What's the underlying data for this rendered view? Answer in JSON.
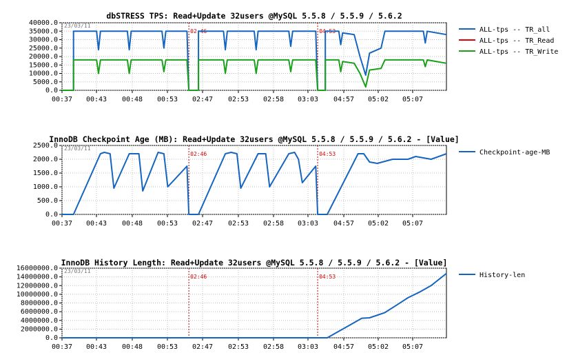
{
  "chart_data": [
    {
      "type": "line",
      "title": "dbSTRESS TPS: Read+Update 32users @MySQL 5.5.8 / 5.5.9 / 5.6.2",
      "date_stamp": "23/03/11",
      "ylim": [
        0,
        40000
      ],
      "yticks": [
        0,
        5000,
        10000,
        15000,
        20000,
        25000,
        30000,
        35000,
        40000
      ],
      "ytick_labels": [
        "0.0",
        "5000.0",
        "10000.0",
        "15000.0",
        "20000.0",
        "25000.0",
        "30000.0",
        "35000.0",
        "40000.0"
      ],
      "x_tick_labels": [
        "00:37",
        "00:43",
        "00:48",
        "00:53",
        "02:47",
        "02:53",
        "02:58",
        "03:03",
        "04:57",
        "05:02",
        "05:07"
      ],
      "markers": [
        {
          "label": "02:46",
          "x": 0.33
        },
        {
          "label": "04:53",
          "x": 0.665
        }
      ],
      "grid": true,
      "legend_position": "right",
      "series": [
        {
          "name": "ALL-tps -- TR_all",
          "color": "#1565c0",
          "points": [
            [
              0,
              0
            ],
            [
              0.03,
              0
            ],
            [
              0.03,
              35000
            ],
            [
              0.09,
              35000
            ],
            [
              0.095,
              24000
            ],
            [
              0.1,
              35000
            ],
            [
              0.17,
              35000
            ],
            [
              0.175,
              24000
            ],
            [
              0.18,
              35000
            ],
            [
              0.26,
              35000
            ],
            [
              0.265,
              25000
            ],
            [
              0.27,
              35000
            ],
            [
              0.325,
              35000
            ],
            [
              0.33,
              0
            ],
            [
              0.355,
              0
            ],
            [
              0.355,
              35000
            ],
            [
              0.42,
              35000
            ],
            [
              0.425,
              24000
            ],
            [
              0.43,
              35000
            ],
            [
              0.5,
              35000
            ],
            [
              0.505,
              24000
            ],
            [
              0.51,
              35000
            ],
            [
              0.59,
              35000
            ],
            [
              0.595,
              26000
            ],
            [
              0.6,
              35000
            ],
            [
              0.66,
              35000
            ],
            [
              0.665,
              0
            ],
            [
              0.685,
              0
            ],
            [
              0.685,
              35000
            ],
            [
              0.72,
              35000
            ],
            [
              0.725,
              27000
            ],
            [
              0.73,
              34000
            ],
            [
              0.76,
              33000
            ],
            [
              0.775,
              20000
            ],
            [
              0.79,
              9000
            ],
            [
              0.8,
              22000
            ],
            [
              0.83,
              25000
            ],
            [
              0.84,
              35000
            ],
            [
              0.94,
              35000
            ],
            [
              0.945,
              28000
            ],
            [
              0.95,
              35000
            ],
            [
              1.0,
              33000
            ]
          ]
        },
        {
          "name": "ALL-tps -- TR_Read",
          "color": "#e00000",
          "points": []
        },
        {
          "name": "ALL-tps -- TR_Write",
          "color": "#1aa01a",
          "points": [
            [
              0,
              0
            ],
            [
              0.03,
              0
            ],
            [
              0.03,
              18000
            ],
            [
              0.09,
              18000
            ],
            [
              0.095,
              10000
            ],
            [
              0.1,
              18000
            ],
            [
              0.17,
              18000
            ],
            [
              0.175,
              10000
            ],
            [
              0.18,
              18000
            ],
            [
              0.26,
              18000
            ],
            [
              0.265,
              11000
            ],
            [
              0.27,
              18000
            ],
            [
              0.325,
              18000
            ],
            [
              0.33,
              0
            ],
            [
              0.355,
              0
            ],
            [
              0.355,
              18000
            ],
            [
              0.42,
              18000
            ],
            [
              0.425,
              10000
            ],
            [
              0.43,
              18000
            ],
            [
              0.5,
              18000
            ],
            [
              0.505,
              10000
            ],
            [
              0.51,
              18000
            ],
            [
              0.59,
              18000
            ],
            [
              0.595,
              11000
            ],
            [
              0.6,
              18000
            ],
            [
              0.66,
              18000
            ],
            [
              0.665,
              0
            ],
            [
              0.685,
              0
            ],
            [
              0.685,
              18000
            ],
            [
              0.72,
              18000
            ],
            [
              0.725,
              11000
            ],
            [
              0.73,
              17000
            ],
            [
              0.76,
              16000
            ],
            [
              0.775,
              10000
            ],
            [
              0.79,
              2000
            ],
            [
              0.8,
              12000
            ],
            [
              0.83,
              13000
            ],
            [
              0.84,
              18000
            ],
            [
              0.94,
              18000
            ],
            [
              0.945,
              14000
            ],
            [
              0.95,
              18000
            ],
            [
              1.0,
              16000
            ]
          ]
        }
      ]
    },
    {
      "type": "line",
      "title": "InnoDB Checkpoint Age (MB): Read+Update 32users @MySQL 5.5.8 / 5.5.9 / 5.6.2 - [Value]",
      "date_stamp": "23/03/11",
      "ylim": [
        0,
        2500
      ],
      "yticks": [
        0,
        500,
        1000,
        1500,
        2000,
        2500
      ],
      "ytick_labels": [
        "0.0",
        "500.0",
        "1000.0",
        "1500.0",
        "2000.0",
        "2500.0"
      ],
      "x_tick_labels": [
        "00:37",
        "00:43",
        "00:48",
        "00:53",
        "02:47",
        "02:53",
        "02:58",
        "03:03",
        "04:57",
        "05:02",
        "05:07"
      ],
      "markers": [
        {
          "label": "02:46",
          "x": 0.33
        },
        {
          "label": "04:53",
          "x": 0.665
        }
      ],
      "grid": true,
      "legend_position": "right",
      "series": [
        {
          "name": "Checkpoint-age-MB",
          "color": "#1565c0",
          "points": [
            [
              0,
              0
            ],
            [
              0.03,
              0
            ],
            [
              0.1,
              2200
            ],
            [
              0.11,
              2250
            ],
            [
              0.125,
              2200
            ],
            [
              0.135,
              950
            ],
            [
              0.175,
              2200
            ],
            [
              0.2,
              2200
            ],
            [
              0.21,
              850
            ],
            [
              0.25,
              2250
            ],
            [
              0.265,
              2200
            ],
            [
              0.275,
              1000
            ],
            [
              0.325,
              1750
            ],
            [
              0.33,
              0
            ],
            [
              0.355,
              0
            ],
            [
              0.425,
              2200
            ],
            [
              0.44,
              2250
            ],
            [
              0.455,
              2200
            ],
            [
              0.465,
              950
            ],
            [
              0.51,
              2200
            ],
            [
              0.53,
              2200
            ],
            [
              0.54,
              1000
            ],
            [
              0.59,
              2200
            ],
            [
              0.605,
              2250
            ],
            [
              0.615,
              2000
            ],
            [
              0.625,
              1150
            ],
            [
              0.66,
              1750
            ],
            [
              0.665,
              0
            ],
            [
              0.69,
              0
            ],
            [
              0.77,
              2200
            ],
            [
              0.785,
              2200
            ],
            [
              0.8,
              1900
            ],
            [
              0.82,
              1850
            ],
            [
              0.86,
              2000
            ],
            [
              0.9,
              2000
            ],
            [
              0.92,
              2100
            ],
            [
              0.96,
              2000
            ],
            [
              1.0,
              2200
            ]
          ]
        }
      ]
    },
    {
      "type": "line",
      "title": "InnoDB History Length: Read+Update 32users @MySQL 5.5.8 / 5.5.9 / 5.6.2 - [Value]",
      "date_stamp": "23/03/11",
      "ylim": [
        0,
        16000000
      ],
      "yticks": [
        0,
        2000000,
        4000000,
        6000000,
        8000000,
        10000000,
        12000000,
        14000000,
        16000000
      ],
      "ytick_labels": [
        "0.0",
        "2000000.0",
        "4000000.0",
        "6000000.0",
        "8000000.0",
        "10000000.0",
        "12000000.0",
        "14000000.0",
        "16000000.0"
      ],
      "x_tick_labels": [
        "00:37",
        "00:43",
        "00:48",
        "00:53",
        "02:47",
        "02:53",
        "02:58",
        "03:03",
        "04:57",
        "05:02",
        "05:07"
      ],
      "markers": [
        {
          "label": "02:46",
          "x": 0.33
        },
        {
          "label": "04:53",
          "x": 0.665
        }
      ],
      "grid": true,
      "legend_position": "right",
      "series": [
        {
          "name": "History-len",
          "color": "#1565c0",
          "points": [
            [
              0,
              0
            ],
            [
              0.69,
              0
            ],
            [
              0.75,
              3000000
            ],
            [
              0.78,
              4500000
            ],
            [
              0.8,
              4600000
            ],
            [
              0.84,
              5800000
            ],
            [
              0.87,
              7500000
            ],
            [
              0.9,
              9200000
            ],
            [
              0.93,
              10500000
            ],
            [
              0.96,
              12000000
            ],
            [
              1.0,
              14800000
            ]
          ]
        }
      ]
    }
  ]
}
